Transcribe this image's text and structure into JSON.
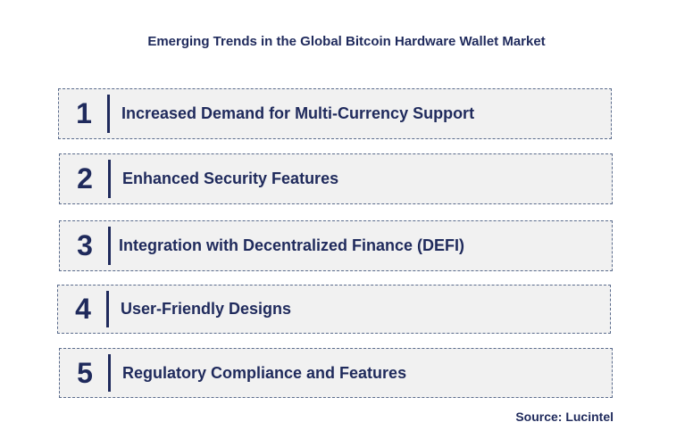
{
  "title": "Emerging Trends in the Global Bitcoin Hardware Wallet Market",
  "trends": [
    {
      "number": "1",
      "label": "Increased Demand for Multi-Currency Support"
    },
    {
      "number": "2",
      "label": "Enhanced Security Features"
    },
    {
      "number": "3",
      "label": "Integration with Decentralized Finance (DEFI)"
    },
    {
      "number": "4",
      "label": "User-Friendly Designs"
    },
    {
      "number": "5",
      "label": "Regulatory Compliance and Features"
    }
  ],
  "source": "Source: Lucintel",
  "colors": {
    "text": "#1f2a5c",
    "box_fill": "#f1f1f1",
    "box_border": "#5a6b8c"
  }
}
